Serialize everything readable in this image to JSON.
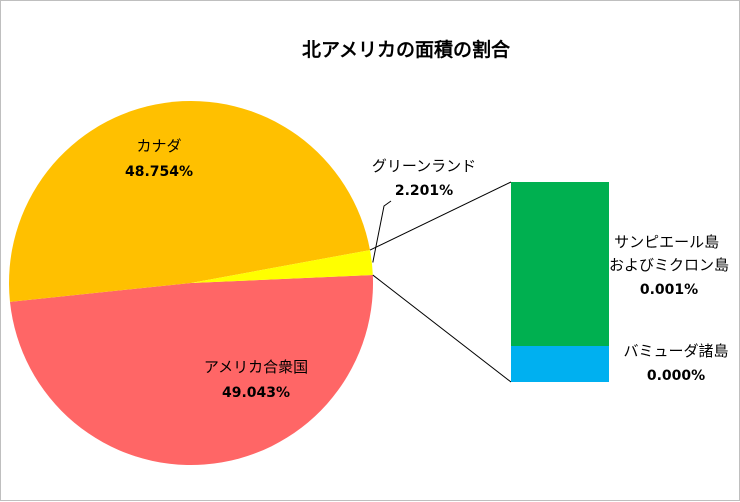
{
  "chart_data": {
    "type": "pie",
    "title": "北アメリカの面積の割合",
    "colors": {
      "canada": "#FFC000",
      "usa": "#FF6666",
      "greenland": "#FFFF00",
      "saint_pierre_miquelon": "#00B050",
      "bermuda": "#00B0F0",
      "leader_lines": "#000000"
    },
    "slices": [
      {
        "name": "アメリカ合衆国",
        "value": 49.043,
        "label": "49.043%"
      },
      {
        "name": "カナダ",
        "value": 48.754,
        "label": "48.754%"
      },
      {
        "name": "グリーンランド",
        "value": 2.201,
        "label": "2.201%"
      }
    ],
    "bar_of_pie": {
      "source": "グリーンランド",
      "segments": [
        {
          "name": "サンピエール島\nおよびミクロン島",
          "value": 0.001,
          "label": "0.001%"
        },
        {
          "name": "バミューダ諸島",
          "value": 0.0,
          "label": "0.000%"
        }
      ]
    }
  }
}
